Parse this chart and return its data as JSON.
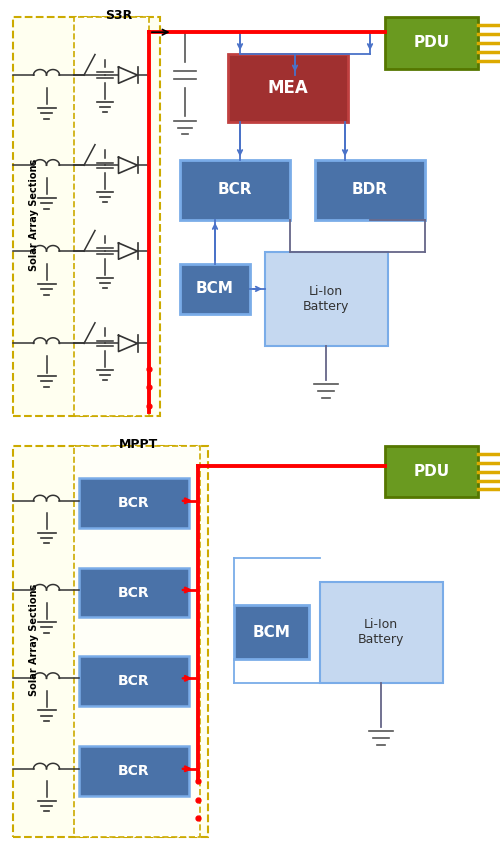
{
  "fig_width": 5.0,
  "fig_height": 8.5,
  "bg_color": "#ffffff",
  "yellow_border": "#ccaa00",
  "blue_box_color": "#4a72a8",
  "blue_box_edge": "#7aace8",
  "light_blue_box": "#c5d8f0",
  "light_blue_edge": "#7aace8",
  "red_box_color": "#a03030",
  "red_box_edge": "#c04040",
  "green_box_color": "#6a9a20",
  "green_box_edge": "#557700",
  "red_line": "#ff0000",
  "blue_line": "#4a72c8",
  "sa_line_color": "#333333",
  "ground_color": "#555555",
  "pdu_pin_color": "#ddaa00",
  "sa_label": "Solar Array Sections",
  "top_section_label": "S3R",
  "bot_section_label": "MPPT"
}
